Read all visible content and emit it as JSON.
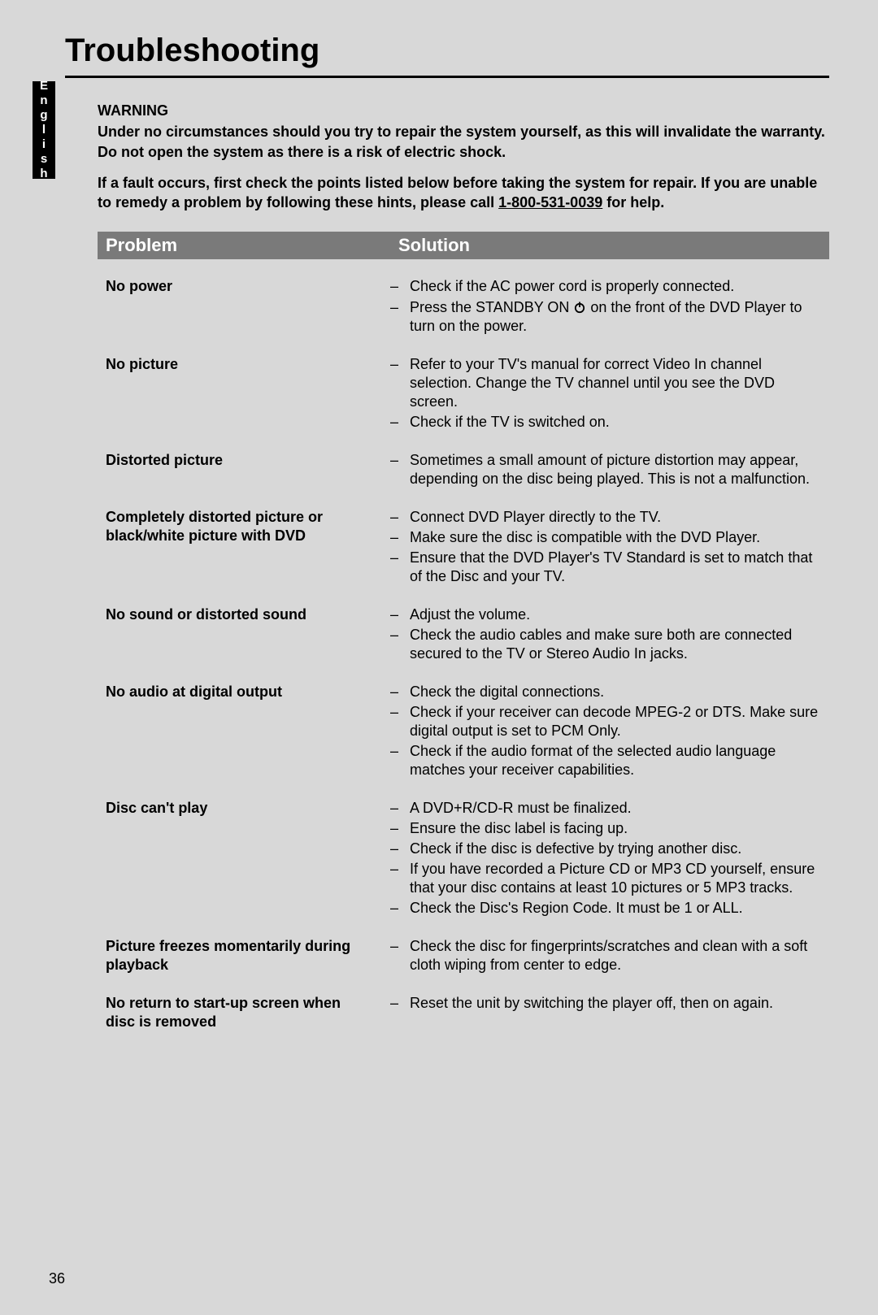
{
  "title": "Troubleshooting",
  "language_tab": "English",
  "warning": {
    "heading": "WARNING",
    "line1": "Under no circumstances should you try to repair the system yourself, as this will invalidate the warranty.  Do not open the system as there is a risk of electric shock.",
    "line2a": "If a fault occurs, first check the points listed below before taking the system for repair. If you are unable to remedy a problem by following these hints, please call ",
    "phone": "1-800-531-0039",
    "line2b": " for help."
  },
  "table": {
    "head_problem": "Problem",
    "head_solution": "Solution",
    "rows": [
      {
        "problem": "No power",
        "solutions": [
          "Check if the AC power cord is properly connected.",
          "Press the STANDBY ON {POWER} on the front of the DVD Player to turn on the power."
        ]
      },
      {
        "problem": "No picture",
        "solutions": [
          "Refer to your TV's manual for correct Video In channel selection.  Change the TV channel until you see the DVD screen.",
          "Check if the TV is switched on."
        ]
      },
      {
        "problem": "Distorted picture",
        "solutions": [
          "Sometimes a small amount of picture distortion may appear, depending on the disc being played. This is not a malfunction."
        ]
      },
      {
        "problem": "Completely distorted picture or black/white picture with DVD",
        "solutions": [
          "Connect DVD Player directly to the TV.",
          "Make sure the disc is compatible with the DVD Player.",
          "Ensure that the DVD Player's TV Standard is set to match that of the Disc and your TV."
        ]
      },
      {
        "problem": "No sound or distorted sound",
        "solutions": [
          "Adjust the volume.",
          "Check the audio cables and make sure both are connected secured to the TV or Stereo Audio In jacks."
        ]
      },
      {
        "problem": "No audio at digital output",
        "solutions": [
          "Check the digital connections.",
          "Check if your receiver can decode MPEG-2 or DTS. Make sure digital output is set to PCM Only.",
          "Check if the audio format of the selected audio language matches your receiver capabilities."
        ]
      },
      {
        "problem": "Disc can't play",
        "solutions": [
          "A DVD+R/CD-R must be finalized.",
          "Ensure the disc label is facing up.",
          "Check if the disc is defective by trying another disc.",
          "If you have recorded a Picture CD or MP3 CD yourself, ensure that your disc contains at least 10 pictures or 5 MP3 tracks.",
          "Check the Disc's Region Code. It must be 1 or ALL."
        ]
      },
      {
        "problem": "Picture freezes momentarily during playback",
        "solutions": [
          "Check the disc for fingerprints/scratches and clean with a soft cloth wiping from center to edge."
        ]
      },
      {
        "problem": "No return to start-up screen when disc is removed",
        "solutions": [
          "Reset the unit by switching the player off, then on again."
        ]
      }
    ]
  },
  "page_number": "36",
  "colors": {
    "bg": "#d8d8d8",
    "header_bar": "#7a7a7a",
    "text": "#000000",
    "header_text": "#ffffff"
  }
}
